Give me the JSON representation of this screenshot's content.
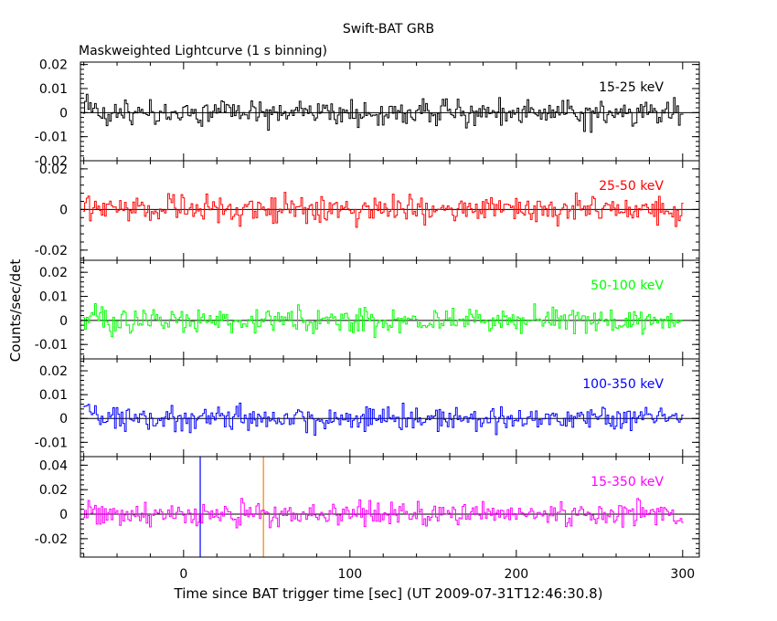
{
  "title": "Swift-BAT GRB",
  "subtitle": "Maskweighted Lightcurve (1 s binning)",
  "xlabel": "Time since BAT trigger time [sec] (UT 2009-07-31T12:46:30.8)",
  "ylabel": "Counts/sec/det",
  "chart_data": {
    "type": "line",
    "title": "Swift-BAT GRB",
    "subtitle": "Maskweighted Lightcurve (1 s binning)",
    "xlabel": "Time since BAT trigger time [sec] (UT 2009-07-31T12:46:30.8)",
    "ylabel": "Counts/sec/det",
    "xlim": [
      -62,
      310
    ],
    "xticks": [
      0,
      100,
      200,
      300
    ],
    "x_range_of_data": [
      -60,
      300
    ],
    "bin_size_sec": 1,
    "vertical_markers": [
      {
        "x": 10,
        "color": "#0000ff"
      },
      {
        "x": 48,
        "color": "#ff8000"
      }
    ],
    "panels": [
      {
        "band": "15-25 keV",
        "color": "#000000",
        "ylim": [
          -0.02,
          0.021
        ],
        "yticks": [
          -0.02,
          -0.01,
          0,
          0.01,
          0.02
        ],
        "yticklabels": [
          "-0.02",
          "-0.01",
          "0",
          "0.01",
          "0.02"
        ],
        "noise_amplitude": 0.005
      },
      {
        "band": "25-50 keV",
        "color": "#ff0000",
        "ylim": [
          -0.025,
          0.024
        ],
        "yticks": [
          -0.02,
          0,
          0.02
        ],
        "yticklabels": [
          "-0.02",
          "0",
          "0.02"
        ],
        "noise_amplitude": 0.006
      },
      {
        "band": "50-100 keV",
        "color": "#00ff00",
        "ylim": [
          -0.016,
          0.025
        ],
        "yticks": [
          -0.01,
          0,
          0.01,
          0.02
        ],
        "yticklabels": [
          "-0.01",
          "0",
          "0.01",
          "0.02"
        ],
        "noise_amplitude": 0.0045
      },
      {
        "band": "100-350 keV",
        "color": "#0000ff",
        "ylim": [
          -0.016,
          0.025
        ],
        "yticks": [
          -0.01,
          0,
          0.01,
          0.02
        ],
        "yticklabels": [
          "-0.01",
          "0",
          "0.01",
          "0.02"
        ],
        "noise_amplitude": 0.0045
      },
      {
        "band": "15-350 keV",
        "color": "#ff00ff",
        "ylim": [
          -0.035,
          0.047
        ],
        "yticks": [
          -0.02,
          0,
          0.02,
          0.04
        ],
        "yticklabels": [
          "-0.02",
          "0",
          "0.02",
          "0.04"
        ],
        "noise_amplitude": 0.009
      }
    ]
  }
}
